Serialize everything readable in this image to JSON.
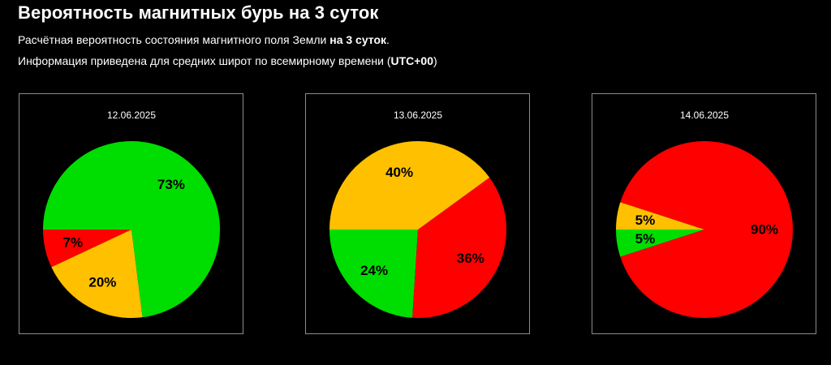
{
  "header": {
    "title": "Вероятность магнитных бурь на 3 суток",
    "line1_prefix": "Расчётная вероятность состояния магнитного поля Земли ",
    "line1_bold": "на 3 суток",
    "line1_suffix": ".",
    "line2_prefix": "Информация приведена для средних широт по всемирному времени (",
    "line2_bold": "UTC+00",
    "line2_suffix": ")"
  },
  "colors": {
    "green": "#00dd00",
    "yellow": "#ffc000",
    "red": "#ff0000"
  },
  "chart_data": [
    {
      "type": "pie",
      "title": "12.06.2025",
      "slices": [
        {
          "key": "green",
          "value": 73,
          "label": "73%",
          "color": "#00dd00"
        },
        {
          "key": "yellow",
          "value": 20,
          "label": "20%",
          "color": "#ffc000"
        },
        {
          "key": "red",
          "value": 7,
          "label": "7%",
          "color": "#ff0000"
        }
      ]
    },
    {
      "type": "pie",
      "title": "13.06.2025",
      "slices": [
        {
          "key": "green",
          "value": 24,
          "label": "24%",
          "color": "#00dd00"
        },
        {
          "key": "yellow",
          "value": 40,
          "label": "40%",
          "color": "#ffc000"
        },
        {
          "key": "red",
          "value": 36,
          "label": "36%",
          "color": "#ff0000"
        }
      ]
    },
    {
      "type": "pie",
      "title": "14.06.2025",
      "slices": [
        {
          "key": "green",
          "value": 5,
          "label": "5%",
          "color": "#00dd00"
        },
        {
          "key": "yellow",
          "value": 5,
          "label": "5%",
          "color": "#ffc000"
        },
        {
          "key": "red",
          "value": 90,
          "label": "90%",
          "color": "#ff0000"
        }
      ]
    }
  ]
}
